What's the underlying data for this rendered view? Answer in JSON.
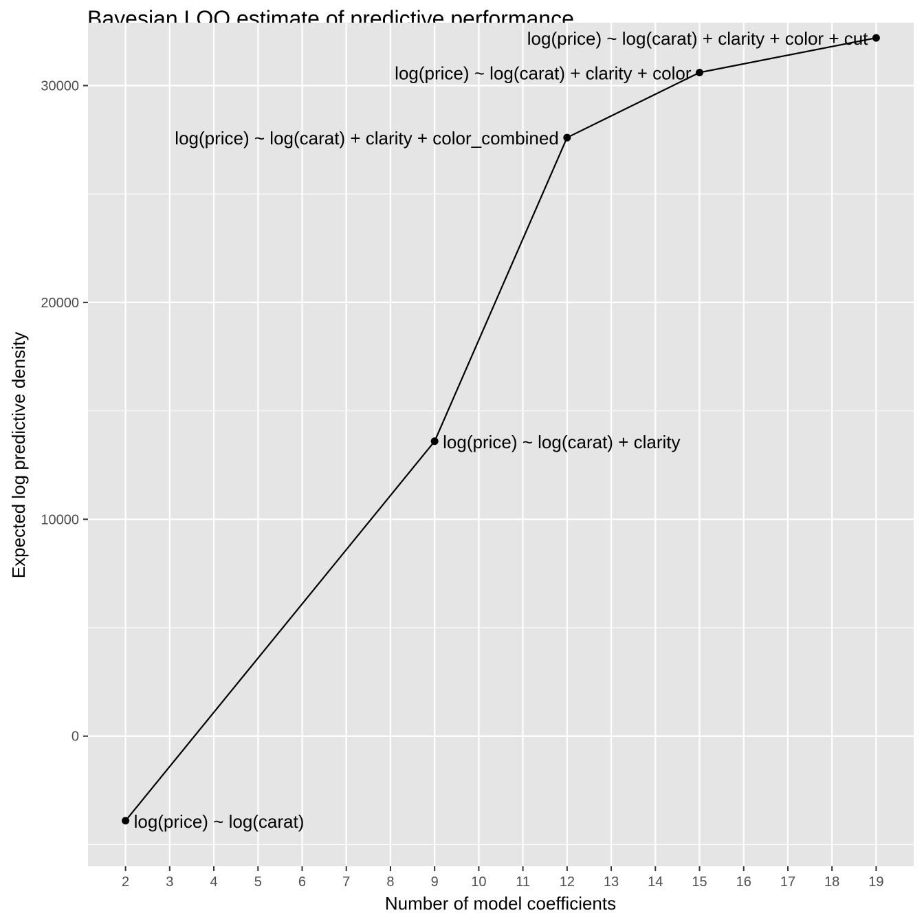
{
  "chart_data": {
    "type": "line",
    "title": "Bayesian LOO estimate of predictive performance",
    "xlabel": "Number of model coefficients",
    "ylabel": "Expected log predictive density",
    "x_ticks": [
      2,
      3,
      4,
      5,
      6,
      7,
      8,
      9,
      10,
      11,
      12,
      13,
      14,
      15,
      16,
      17,
      18,
      19
    ],
    "y_ticks": [
      0,
      10000,
      20000,
      30000
    ],
    "y_tick_labels": [
      "0",
      "10000",
      "20000",
      "30000"
    ],
    "xlim": [
      1.15,
      19.85
    ],
    "ylim": [
      -6000,
      32900
    ],
    "grid": true,
    "background": "#e5e5e5",
    "grid_color": "#ffffff",
    "line_color": "#000000",
    "points": [
      {
        "x": 2,
        "y": -3900,
        "label": "log(price) ~ log(carat)"
      },
      {
        "x": 9,
        "y": 13600,
        "label": "log(price) ~ log(carat) + clarity"
      },
      {
        "x": 12,
        "y": 27600,
        "label": "log(price) ~ log(carat) + clarity + color_combined"
      },
      {
        "x": 15,
        "y": 30600,
        "label": "log(price) ~ log(carat) + clarity + color"
      },
      {
        "x": 19,
        "y": 32200,
        "label": "log(price) ~ log(carat) + clarity + color + cut"
      }
    ]
  }
}
